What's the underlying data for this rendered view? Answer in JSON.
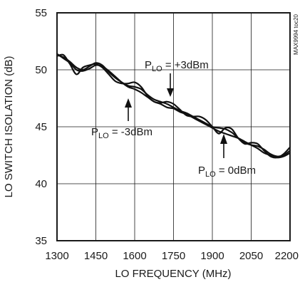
{
  "chart_data": {
    "type": "line",
    "xlabel": "LO FREQUENCY (MHz)",
    "ylabel": "LO SWITCH ISOLATION (dB)",
    "xlim": [
      1300,
      2200
    ],
    "ylim": [
      35,
      55
    ],
    "xticks": [
      "1300",
      "1450",
      "1600",
      "1750",
      "1900",
      "2050",
      "2200"
    ],
    "yticks": [
      "35",
      "40",
      "45",
      "50",
      "55"
    ],
    "grid": true,
    "figure_id": "MAX9994 toc20",
    "series": [
      {
        "name": "PLO = -3dBm",
        "x": [
          1300,
          1325,
          1350,
          1375,
          1400,
          1425,
          1450,
          1475,
          1500,
          1525,
          1550,
          1575,
          1600,
          1625,
          1650,
          1675,
          1700,
          1725,
          1750,
          1775,
          1800,
          1825,
          1850,
          1875,
          1900,
          1925,
          1950,
          1975,
          2000,
          2025,
          2050,
          2075,
          2100,
          2125,
          2150,
          2175,
          2200
        ],
        "y": [
          51.4,
          51.0,
          50.6,
          50.0,
          49.9,
          50.1,
          50.4,
          50.3,
          49.9,
          49.4,
          48.9,
          48.5,
          48.3,
          48.0,
          47.6,
          47.2,
          47.0,
          46.7,
          46.6,
          46.3,
          46.1,
          45.8,
          45.5,
          45.2,
          44.9,
          44.6,
          44.4,
          44.2,
          44.0,
          43.7,
          43.4,
          43.1,
          42.7,
          42.5,
          42.3,
          42.4,
          42.7
        ]
      },
      {
        "name": "PLO = 0dBm",
        "x": [
          1300,
          1325,
          1350,
          1375,
          1400,
          1425,
          1450,
          1475,
          1500,
          1525,
          1550,
          1575,
          1600,
          1625,
          1650,
          1675,
          1700,
          1725,
          1750,
          1775,
          1800,
          1825,
          1850,
          1875,
          1900,
          1925,
          1950,
          1975,
          2000,
          2025,
          2050,
          2075,
          2100,
          2125,
          2150,
          2175,
          2200
        ],
        "y": [
          51.3,
          51.1,
          50.7,
          50.2,
          50.0,
          50.3,
          50.6,
          50.4,
          49.8,
          49.3,
          48.9,
          48.6,
          48.5,
          48.3,
          47.8,
          47.4,
          47.2,
          47.0,
          46.7,
          46.4,
          46.2,
          45.9,
          45.6,
          45.3,
          45.0,
          44.9,
          44.8,
          44.5,
          44.0,
          43.6,
          43.4,
          43.3,
          43.0,
          42.6,
          42.4,
          42.5,
          42.9
        ]
      },
      {
        "name": "PLO = +3dBm",
        "x": [
          1300,
          1325,
          1350,
          1375,
          1400,
          1425,
          1450,
          1475,
          1500,
          1525,
          1550,
          1575,
          1600,
          1625,
          1650,
          1675,
          1700,
          1725,
          1750,
          1775,
          1800,
          1825,
          1850,
          1875,
          1900,
          1925,
          1950,
          1975,
          2000,
          2025,
          2050,
          2075,
          2100,
          2125,
          2150,
          2175,
          2200
        ],
        "y": [
          51.2,
          51.3,
          50.5,
          49.6,
          50.2,
          50.4,
          50.5,
          50.2,
          49.6,
          49.0,
          48.8,
          48.8,
          48.9,
          48.5,
          47.7,
          47.2,
          47.1,
          47.2,
          47.0,
          46.5,
          46.0,
          45.9,
          45.9,
          45.6,
          45.0,
          44.4,
          44.9,
          44.8,
          44.0,
          43.5,
          43.6,
          43.5,
          42.9,
          42.4,
          42.3,
          42.6,
          43.2
        ]
      }
    ],
    "annotations": [
      {
        "main": "P",
        "sub": "LO",
        "rest": " = +3dBm"
      },
      {
        "main": "P",
        "sub": "LO",
        "rest": " = -3dBm"
      },
      {
        "main": "P",
        "sub": "LO",
        "rest": " = 0dBm"
      }
    ]
  }
}
